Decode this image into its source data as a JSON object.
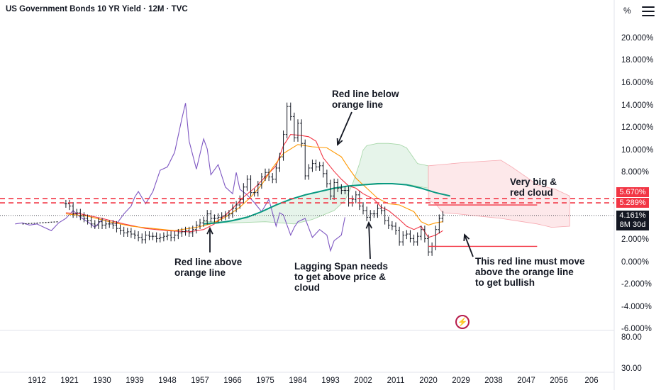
{
  "header": {
    "title": "US Government Bonds 10 YR Yield · 12M · TVC",
    "unit": "%"
  },
  "chart_data": {
    "type": "candlestick",
    "x_axis": {
      "ticks": [
        "1912",
        "1921",
        "1930",
        "1939",
        "1948",
        "1957",
        "1966",
        "1975",
        "1984",
        "1993",
        "2002",
        "2011",
        "2020",
        "2029",
        "2038",
        "2047",
        "2056",
        "206"
      ],
      "range": [
        1906,
        2064
      ]
    },
    "y_axis": {
      "ticks": [
        "20.000%",
        "18.000%",
        "16.000%",
        "14.000%",
        "12.000%",
        "10.000%",
        "8.000%",
        "6.000%",
        "4.000%",
        "2.000%",
        "0.000%",
        "-2.000%",
        "-4.000%",
        "-6.000%"
      ],
      "range": [
        -6,
        21
      ]
    },
    "lower_pane": {
      "ticks": [
        "80.00",
        "30.00"
      ]
    },
    "price_labels": [
      {
        "value": "5.670%",
        "color": "#f23645"
      },
      {
        "value": "5.289%",
        "color": "#f23645"
      }
    ],
    "last_price": {
      "value": "4.161%",
      "countdown": "8M 30d"
    },
    "horizontal_levels": [
      5.67,
      5.289
    ],
    "price_series": [
      {
        "x": 1920,
        "y": 5.2
      },
      {
        "x": 1921,
        "y": 5.0
      },
      {
        "x": 1922,
        "y": 4.3
      },
      {
        "x": 1923,
        "y": 4.4
      },
      {
        "x": 1924,
        "y": 4.1
      },
      {
        "x": 1925,
        "y": 3.9
      },
      {
        "x": 1926,
        "y": 3.7
      },
      {
        "x": 1927,
        "y": 3.4
      },
      {
        "x": 1928,
        "y": 3.3
      },
      {
        "x": 1929,
        "y": 3.6
      },
      {
        "x": 1930,
        "y": 3.3
      },
      {
        "x": 1931,
        "y": 3.4
      },
      {
        "x": 1932,
        "y": 3.4
      },
      {
        "x": 1933,
        "y": 3.3
      },
      {
        "x": 1934,
        "y": 3.0
      },
      {
        "x": 1935,
        "y": 2.8
      },
      {
        "x": 1936,
        "y": 2.6
      },
      {
        "x": 1937,
        "y": 2.7
      },
      {
        "x": 1938,
        "y": 2.5
      },
      {
        "x": 1939,
        "y": 2.4
      },
      {
        "x": 1940,
        "y": 2.2
      },
      {
        "x": 1941,
        "y": 2.0
      },
      {
        "x": 1942,
        "y": 2.4
      },
      {
        "x": 1943,
        "y": 2.3
      },
      {
        "x": 1944,
        "y": 2.3
      },
      {
        "x": 1945,
        "y": 2.1
      },
      {
        "x": 1946,
        "y": 2.2
      },
      {
        "x": 1947,
        "y": 2.3
      },
      {
        "x": 1948,
        "y": 2.4
      },
      {
        "x": 1949,
        "y": 2.2
      },
      {
        "x": 1950,
        "y": 2.4
      },
      {
        "x": 1951,
        "y": 2.6
      },
      {
        "x": 1952,
        "y": 2.7
      },
      {
        "x": 1953,
        "y": 2.8
      },
      {
        "x": 1954,
        "y": 2.6
      },
      {
        "x": 1955,
        "y": 2.9
      },
      {
        "x": 1956,
        "y": 3.3
      },
      {
        "x": 1957,
        "y": 3.5
      },
      {
        "x": 1958,
        "y": 3.7
      },
      {
        "x": 1959,
        "y": 4.3
      },
      {
        "x": 1960,
        "y": 3.9
      },
      {
        "x": 1961,
        "y": 3.9
      },
      {
        "x": 1962,
        "y": 4.0
      },
      {
        "x": 1963,
        "y": 4.1
      },
      {
        "x": 1964,
        "y": 4.2
      },
      {
        "x": 1965,
        "y": 4.3
      },
      {
        "x": 1966,
        "y": 4.8
      },
      {
        "x": 1967,
        "y": 5.1
      },
      {
        "x": 1968,
        "y": 5.6
      },
      {
        "x": 1969,
        "y": 6.7
      },
      {
        "x": 1970,
        "y": 7.4
      },
      {
        "x": 1971,
        "y": 6.2
      },
      {
        "x": 1972,
        "y": 6.2
      },
      {
        "x": 1973,
        "y": 6.9
      },
      {
        "x": 1974,
        "y": 7.6
      },
      {
        "x": 1975,
        "y": 8.0
      },
      {
        "x": 1976,
        "y": 7.6
      },
      {
        "x": 1977,
        "y": 7.4
      },
      {
        "x": 1978,
        "y": 8.4
      },
      {
        "x": 1979,
        "y": 9.4
      },
      {
        "x": 1980,
        "y": 11.4
      },
      {
        "x": 1981,
        "y": 13.9
      },
      {
        "x": 1982,
        "y": 13.0
      },
      {
        "x": 1983,
        "y": 11.1
      },
      {
        "x": 1984,
        "y": 12.4
      },
      {
        "x": 1985,
        "y": 10.6
      },
      {
        "x": 1986,
        "y": 7.7
      },
      {
        "x": 1987,
        "y": 8.4
      },
      {
        "x": 1988,
        "y": 8.8
      },
      {
        "x": 1989,
        "y": 8.5
      },
      {
        "x": 1990,
        "y": 8.6
      },
      {
        "x": 1991,
        "y": 7.9
      },
      {
        "x": 1992,
        "y": 7.0
      },
      {
        "x": 1993,
        "y": 5.9
      },
      {
        "x": 1994,
        "y": 7.1
      },
      {
        "x": 1995,
        "y": 6.6
      },
      {
        "x": 1996,
        "y": 6.4
      },
      {
        "x": 1997,
        "y": 6.4
      },
      {
        "x": 1998,
        "y": 5.3
      },
      {
        "x": 1999,
        "y": 5.6
      },
      {
        "x": 2000,
        "y": 6.0
      },
      {
        "x": 2001,
        "y": 5.0
      },
      {
        "x": 2002,
        "y": 4.6
      },
      {
        "x": 2003,
        "y": 4.0
      },
      {
        "x": 2004,
        "y": 4.3
      },
      {
        "x": 2005,
        "y": 4.3
      },
      {
        "x": 2006,
        "y": 4.8
      },
      {
        "x": 2007,
        "y": 4.6
      },
      {
        "x": 2008,
        "y": 3.7
      },
      {
        "x": 2009,
        "y": 3.3
      },
      {
        "x": 2010,
        "y": 3.2
      },
      {
        "x": 2011,
        "y": 2.8
      },
      {
        "x": 2012,
        "y": 1.8
      },
      {
        "x": 2013,
        "y": 2.4
      },
      {
        "x": 2014,
        "y": 2.5
      },
      {
        "x": 2015,
        "y": 2.1
      },
      {
        "x": 2016,
        "y": 1.8
      },
      {
        "x": 2017,
        "y": 2.3
      },
      {
        "x": 2018,
        "y": 2.9
      },
      {
        "x": 2019,
        "y": 2.1
      },
      {
        "x": 2020,
        "y": 0.9
      },
      {
        "x": 2021,
        "y": 1.4
      },
      {
        "x": 2022,
        "y": 2.9
      },
      {
        "x": 2023,
        "y": 3.9
      },
      {
        "x": 2024,
        "y": 4.2
      }
    ],
    "series": [
      {
        "points": [
          [
            1906,
            3.4
          ],
          [
            1908,
            3.5
          ],
          [
            1910,
            3.3
          ],
          [
            1912,
            3.4
          ],
          [
            1914,
            3.1
          ],
          [
            1916,
            2.8
          ],
          [
            1918,
            3.5
          ],
          [
            1920,
            3.9
          ],
          [
            1922,
            4.6
          ],
          [
            1924,
            4.0
          ],
          [
            1926,
            3.6
          ],
          [
            1928,
            3.1
          ],
          [
            1930,
            3.8
          ],
          [
            1932,
            3.6
          ],
          [
            1934,
            3.4
          ],
          [
            1936,
            4.3
          ],
          [
            1938,
            5.0
          ],
          [
            1939,
            5.8
          ],
          [
            1940,
            6.3
          ],
          [
            1942,
            5.2
          ],
          [
            1944,
            6.3
          ],
          [
            1946,
            8.2
          ],
          [
            1948,
            8.5
          ],
          [
            1950,
            9.8
          ],
          [
            1952,
            12.8
          ],
          [
            1953,
            14.2
          ],
          [
            1954,
            10.8
          ],
          [
            1956,
            8.3
          ],
          [
            1958,
            11.0
          ],
          [
            1959,
            10.1
          ],
          [
            1960,
            7.8
          ],
          [
            1962,
            8.7
          ],
          [
            1964,
            6.7
          ],
          [
            1966,
            6.1
          ],
          [
            1967,
            8.0
          ],
          [
            1968,
            6.5
          ],
          [
            1970,
            6.0
          ],
          [
            1972,
            5.3
          ],
          [
            1974,
            4.5
          ],
          [
            1976,
            5.6
          ],
          [
            1978,
            3.2
          ],
          [
            1979,
            4.4
          ],
          [
            1980,
            4.2
          ],
          [
            1982,
            2.4
          ],
          [
            1983,
            3.1
          ],
          [
            1984,
            3.6
          ],
          [
            1986,
            3.9
          ],
          [
            1988,
            2.2
          ],
          [
            1990,
            2.9
          ],
          [
            1992,
            2.4
          ],
          [
            1993,
            1.0
          ],
          [
            1994,
            1.9
          ],
          [
            1996,
            2.4
          ],
          [
            1997,
            4.0
          ]
        ],
        "color": "#7e57c2"
      },
      {
        "points": [
          [
            1920,
            4.4
          ],
          [
            1924,
            4.3
          ],
          [
            1930,
            3.9
          ],
          [
            1936,
            3.4
          ],
          [
            1942,
            3.0
          ],
          [
            1948,
            2.8
          ],
          [
            1954,
            2.7
          ],
          [
            1958,
            2.9
          ],
          [
            1961,
            3.4
          ],
          [
            1964,
            4.2
          ],
          [
            1966,
            4.8
          ],
          [
            1969,
            5.8
          ],
          [
            1972,
            6.6
          ],
          [
            1975,
            7.6
          ],
          [
            1978,
            8.6
          ],
          [
            1980,
            10.4
          ],
          [
            1982,
            11.4
          ],
          [
            1985,
            11.3
          ],
          [
            1987,
            11.2
          ],
          [
            1989,
            10.8
          ],
          [
            1991,
            9.3
          ],
          [
            1994,
            8.1
          ],
          [
            1996,
            7.4
          ],
          [
            1998,
            6.8
          ],
          [
            2000,
            6.6
          ],
          [
            2002,
            6.1
          ],
          [
            2005,
            5.6
          ],
          [
            2007,
            4.9
          ],
          [
            2009,
            4.6
          ],
          [
            2012,
            3.8
          ],
          [
            2014,
            3.2
          ],
          [
            2016,
            2.9
          ],
          [
            2018,
            3.2
          ],
          [
            2020,
            2.2
          ],
          [
            2022,
            2.4
          ],
          [
            2024,
            2.8
          ]
        ],
        "color": "#f23645"
      },
      {
        "points": [
          [
            1920,
            4.3
          ],
          [
            1926,
            4.1
          ],
          [
            1932,
            3.6
          ],
          [
            1938,
            3.2
          ],
          [
            1944,
            3.0
          ],
          [
            1950,
            2.8
          ],
          [
            1956,
            3.1
          ],
          [
            1960,
            3.4
          ],
          [
            1964,
            4.0
          ],
          [
            1968,
            4.9
          ],
          [
            1971,
            5.8
          ],
          [
            1974,
            6.9
          ],
          [
            1977,
            8.4
          ],
          [
            1980,
            9.7
          ],
          [
            1984,
            10.5
          ],
          [
            1988,
            10.3
          ],
          [
            1992,
            10.2
          ],
          [
            1996,
            9.4
          ],
          [
            1998,
            8.4
          ],
          [
            2000,
            7.5
          ],
          [
            2003,
            6.6
          ],
          [
            2006,
            5.7
          ],
          [
            2009,
            5.2
          ],
          [
            2012,
            5.1
          ],
          [
            2016,
            4.5
          ],
          [
            2018,
            3.6
          ],
          [
            2020,
            3.3
          ],
          [
            2022,
            3.5
          ],
          [
            2024,
            3.6
          ]
        ],
        "color": "#ff9800"
      },
      {
        "points": [
          [
            1958,
            3.4
          ],
          [
            1962,
            3.5
          ],
          [
            1966,
            3.7
          ],
          [
            1970,
            4.0
          ],
          [
            1974,
            4.5
          ],
          [
            1978,
            5.1
          ],
          [
            1982,
            5.6
          ],
          [
            1986,
            6.0
          ],
          [
            1990,
            6.3
          ],
          [
            1994,
            6.6
          ],
          [
            1998,
            6.8
          ],
          [
            2002,
            6.9
          ],
          [
            2006,
            7.0
          ],
          [
            2010,
            7.0
          ],
          [
            2014,
            6.9
          ],
          [
            2018,
            6.6
          ],
          [
            2022,
            6.2
          ],
          [
            2026,
            5.9
          ]
        ],
        "color": "#089981"
      }
    ]
  },
  "annotations": {
    "red_below": "Red line below\norange line",
    "very_big": "Very big &\nred cloud",
    "red_above": "Red line above\norange line",
    "lagging": "Lagging Span needs\nto get above price &\ncloud",
    "must_move": "This red line must move\nabove the orange line\nto get bullish"
  }
}
